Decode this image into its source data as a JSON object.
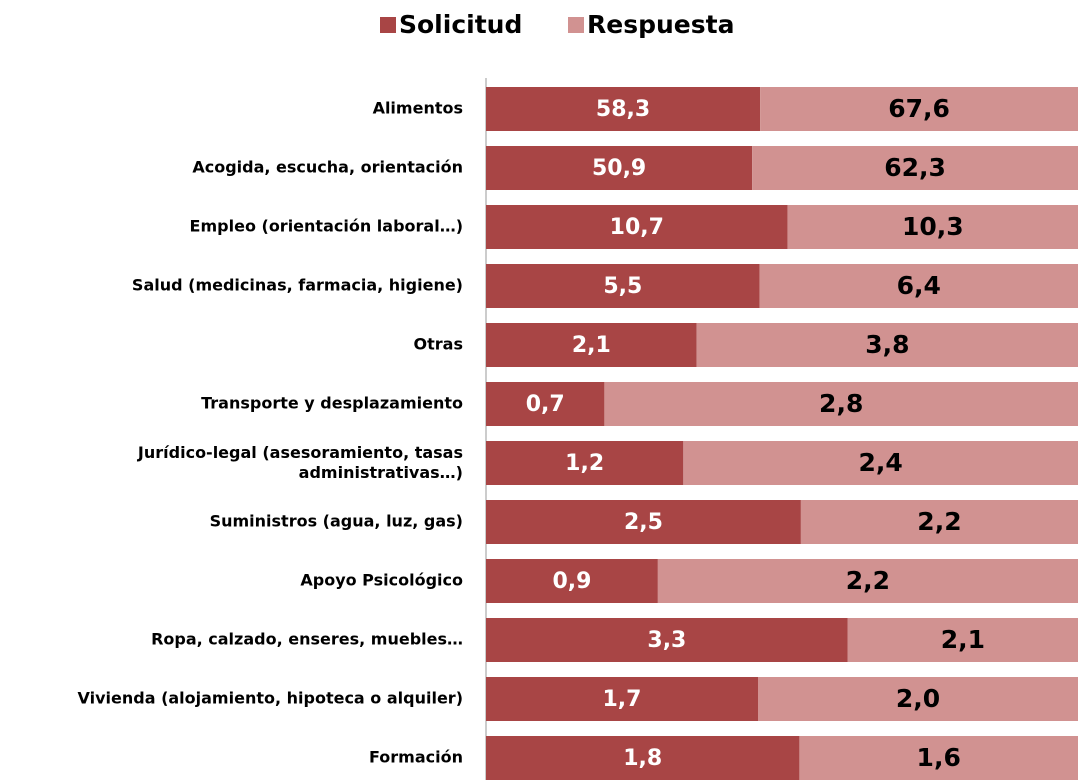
{
  "chart_data": {
    "type": "bar",
    "orientation": "horizontal",
    "stacking": "percent",
    "categories": [
      "Alimentos",
      "Acogida, escucha, orientación",
      "Empleo (orientación laboral…)",
      "Salud (medicinas, farmacia, higiene)",
      "Otras",
      "Transporte y desplazamiento",
      "Jurídico-legal (asesoramiento, tasas\nadministrativas…)",
      "Suministros (agua, luz, gas)",
      "Apoyo Psicológico",
      "Ropa, calzado, enseres, muebles…",
      "Vivienda (alojamiento, hipoteca o alquiler)",
      "Formación"
    ],
    "series": [
      {
        "name": "Solicitud",
        "color": "#a84545",
        "label_color": "#ffffff",
        "values": [
          58.3,
          50.9,
          10.7,
          5.5,
          2.1,
          0.7,
          1.2,
          2.5,
          0.9,
          3.3,
          1.7,
          1.8
        ],
        "value_labels": [
          "58,3",
          "50,9",
          "10,7",
          "5,5",
          "2,1",
          "0,7",
          "1,2",
          "2,5",
          "0,9",
          "3,3",
          "1,7",
          "1,8"
        ]
      },
      {
        "name": "Respuesta",
        "color": "#d19291",
        "label_color": "#000000",
        "values": [
          67.6,
          62.3,
          10.3,
          6.4,
          3.8,
          2.8,
          2.4,
          2.2,
          2.2,
          2.1,
          2.0,
          1.6
        ],
        "value_labels": [
          "67,6",
          "62,3",
          "10,3",
          "6,4",
          "3,8",
          "2,8",
          "2,4",
          "2,2",
          "2,2",
          "2,1",
          "2,0",
          "1,6"
        ]
      }
    ],
    "legend": "top"
  }
}
